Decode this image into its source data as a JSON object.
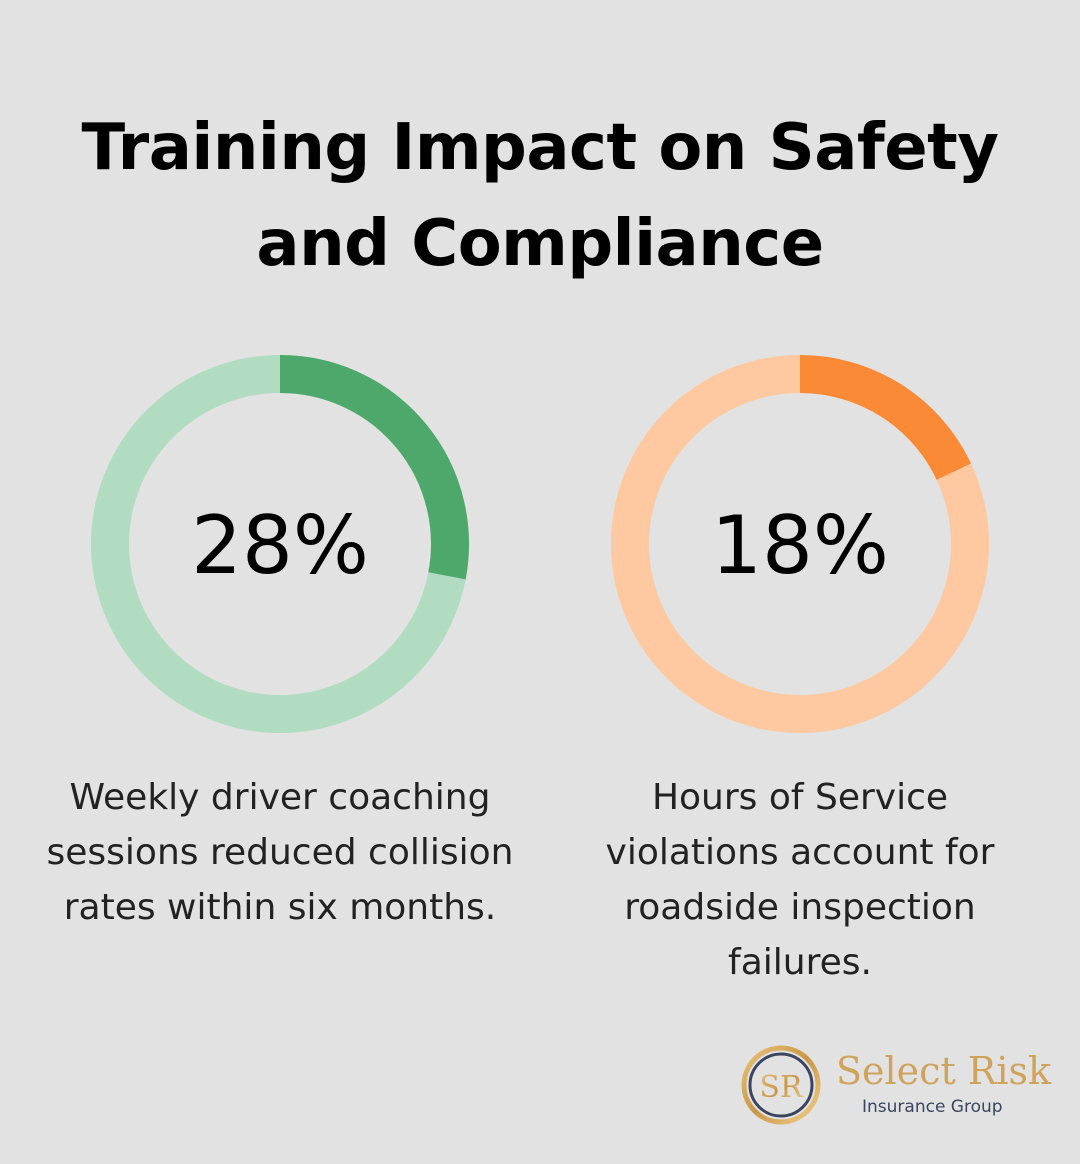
{
  "title": "Training Impact on Safety and Compliance",
  "chart_data": [
    {
      "type": "pie",
      "value": 28,
      "label": "28%",
      "caption": "Weekly driver coaching sessions reduced collision rates within six months.",
      "colors": {
        "filled": "#4ea86c",
        "track": "#b1dcc1"
      }
    },
    {
      "type": "pie",
      "value": 18,
      "label": "18%",
      "caption": "Hours of Service violations account for roadside inspection failures.",
      "colors": {
        "filled": "#fb8a37",
        "track": "#fec8a0"
      }
    }
  ],
  "logo": {
    "monogram": "SR",
    "name": "Select Risk",
    "subtitle": "Insurance Group",
    "colors": {
      "gold": "#cfa35c",
      "navy": "#3b4560"
    }
  },
  "background": "#e1e2e1"
}
